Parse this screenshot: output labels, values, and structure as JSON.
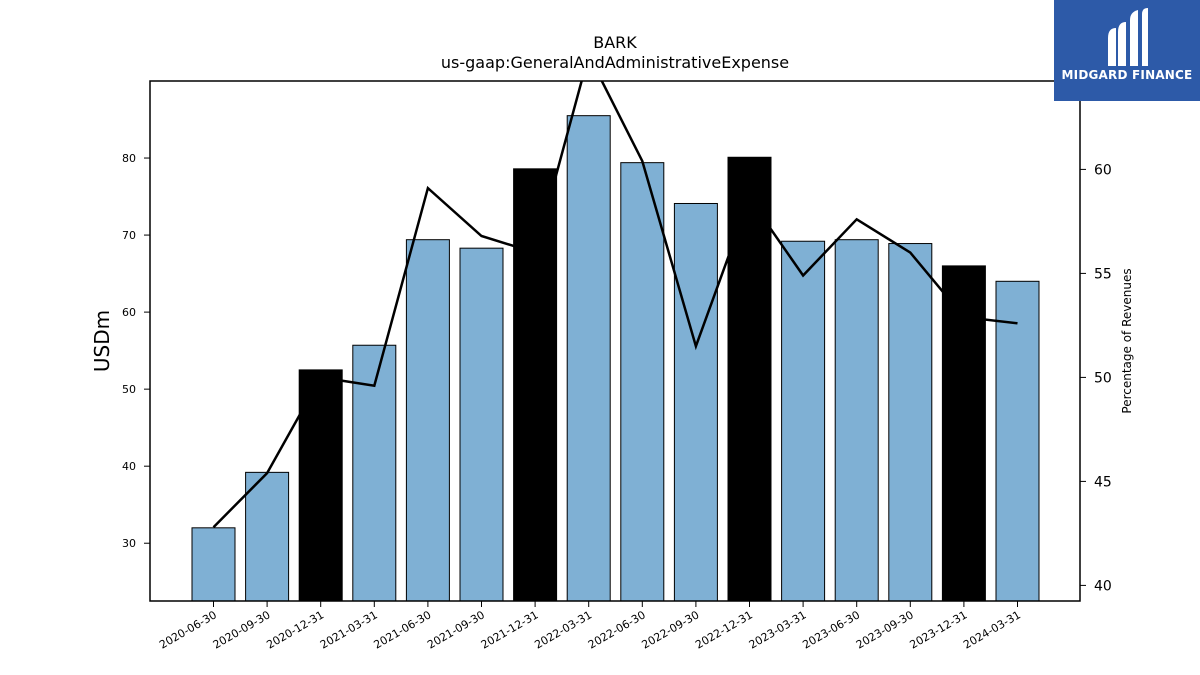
{
  "chart_data": {
    "type": "bar",
    "title": "BARK",
    "subtitle": "us-gaap:GeneralAndAdministrativeExpense",
    "ylabel": "USDm",
    "ylabel_right": "Percentage of Revenues",
    "categories": [
      "2020-06-30",
      "2020-09-30",
      "2020-12-31",
      "2021-03-31",
      "2021-06-30",
      "2021-09-30",
      "2021-12-31",
      "2022-03-31",
      "2022-06-30",
      "2022-09-30",
      "2022-12-31",
      "2023-03-31",
      "2023-06-30",
      "2023-09-30",
      "2023-12-31",
      "2024-03-31"
    ],
    "series": [
      {
        "values": [
          32.0,
          39.2,
          52.5,
          55.7,
          69.4,
          68.3,
          78.6,
          85.5,
          79.4,
          74.1,
          80.1,
          69.2,
          69.4,
          68.9,
          66.0,
          64.0
        ],
        "highlight": [
          false,
          false,
          true,
          false,
          false,
          false,
          true,
          false,
          false,
          false,
          true,
          false,
          false,
          false,
          true,
          false
        ]
      },
      {
        "type": "line",
        "axis": "right",
        "values": [
          42.8,
          45.4,
          50.0,
          49.6,
          59.1,
          56.8,
          56.0,
          65.5,
          60.4,
          51.5,
          58.6,
          54.9,
          57.6,
          56.0,
          52.9,
          52.6
        ]
      }
    ],
    "ylim": [
      22.5,
      90
    ],
    "ylim_right": [
      39.25,
      64.25
    ],
    "yticks": [
      30,
      40,
      50,
      60,
      70,
      80
    ],
    "yticks_right": [
      40,
      45,
      50,
      55,
      60
    ],
    "colors": {
      "bar": "#7fb0d4",
      "highlight": "#000000",
      "line": "#000000"
    },
    "grid": false
  },
  "logo": {
    "text": "MIDGARD FINANCE"
  }
}
